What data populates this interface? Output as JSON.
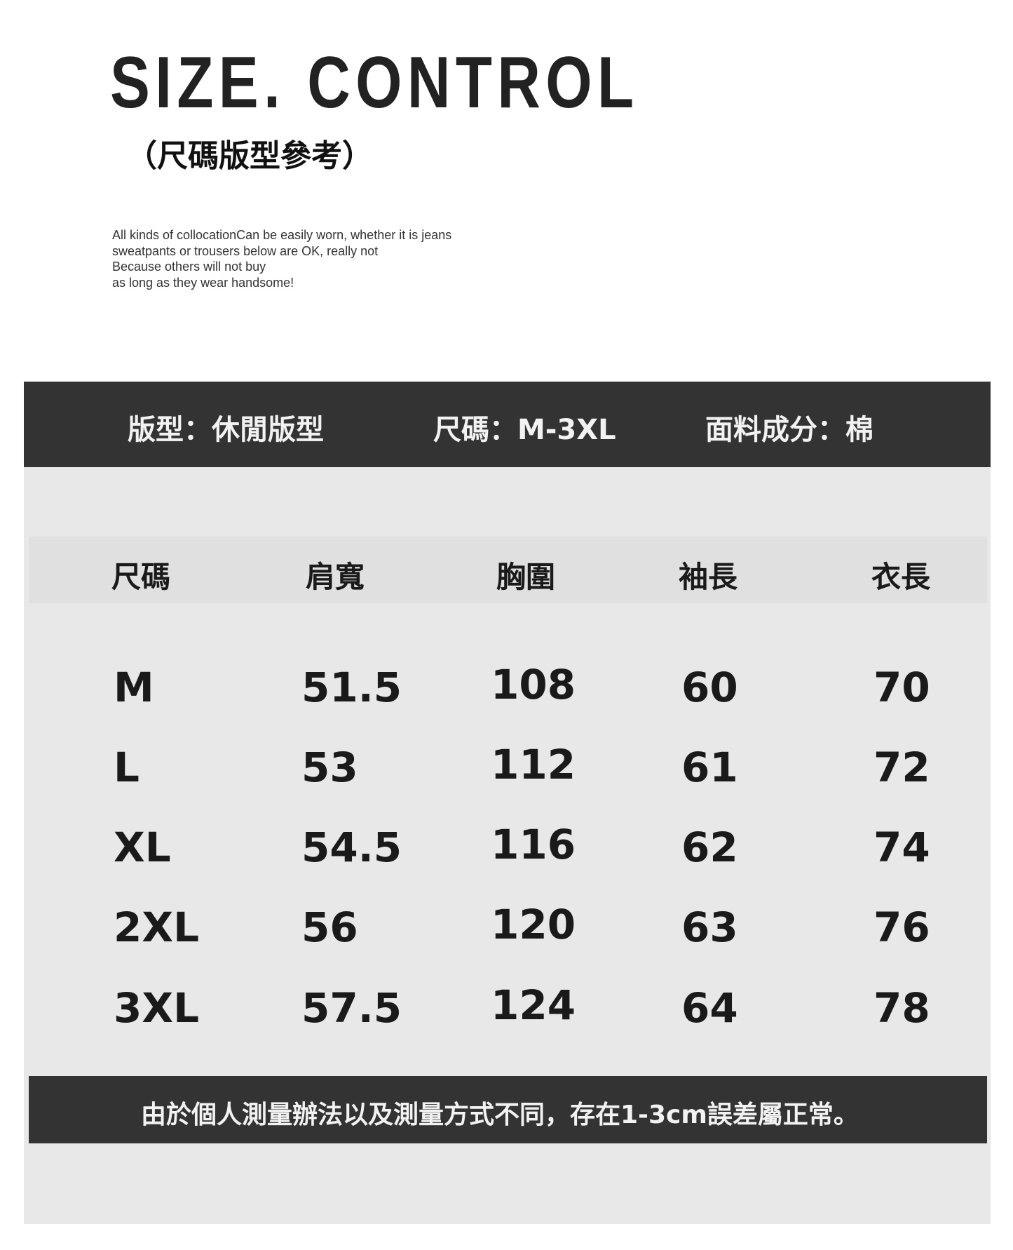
{
  "header": {
    "title": "SIZE. CONTROL",
    "subtitle": "（尺碼版型參考）",
    "description": [
      "All kinds of collocationCan be easily worn, whether it is jeans",
      "sweatpants or trousers below are OK, really not",
      "Because others will not buy",
      "as long as they wear handsome!"
    ]
  },
  "info_bar": [
    "版型：休閒版型",
    "尺碼：M-3XL",
    "面料成分：棉"
  ],
  "size_table": {
    "columns": [
      "尺碼",
      "肩寬",
      "胸圍",
      "袖長",
      "衣長"
    ],
    "rows": [
      [
        "M",
        "51.5",
        "108",
        "60",
        "70"
      ],
      [
        "L",
        "53",
        "112",
        "61",
        "72"
      ],
      [
        "XL",
        "54.5",
        "116",
        "62",
        "74"
      ],
      [
        "2XL",
        "56",
        "120",
        "63",
        "76"
      ],
      [
        "3XL",
        "57.5",
        "124",
        "64",
        "78"
      ]
    ]
  },
  "note": "由於個人測量辦法以及測量方式不同，存在1-3cm誤差屬正常。",
  "colors": {
    "dark_bar": "#333333",
    "panel": "#e8e8e8",
    "header_row": "#e0e0e0"
  }
}
